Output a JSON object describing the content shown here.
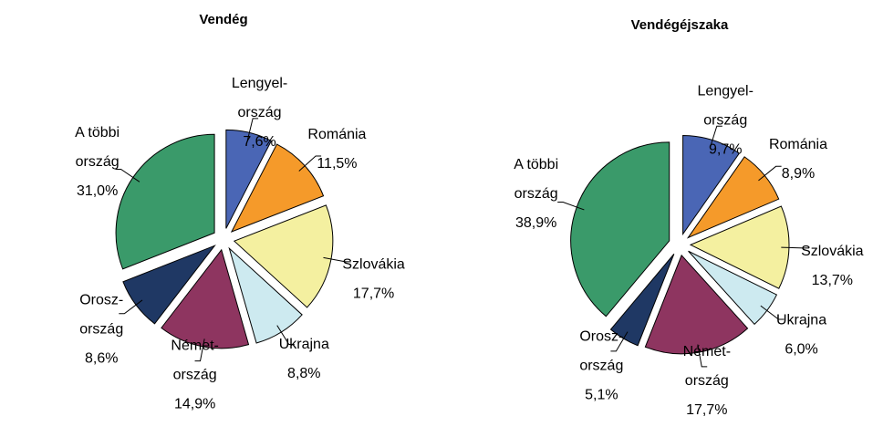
{
  "chart_data": [
    {
      "type": "pie",
      "title": "Vendég",
      "categories": [
        [
          "Lengyel-",
          "ország"
        ],
        [
          "Románia"
        ],
        [
          "Szlovákia"
        ],
        [
          "Ukrajna"
        ],
        [
          "Német-",
          "ország"
        ],
        [
          "Orosz-",
          "ország"
        ],
        [
          "A többi",
          "ország"
        ]
      ],
      "values": [
        7.6,
        11.5,
        17.7,
        8.8,
        14.9,
        8.6,
        31.0
      ],
      "value_labels": [
        "7,6%",
        "11,5%",
        "17,7%",
        "8,8%",
        "14,9%",
        "8,6%",
        "31,0%"
      ],
      "colors": [
        "#4a66b5",
        "#f59a2a",
        "#f4f0a0",
        "#cdeaf0",
        "#8e3560",
        "#1f3864",
        "#3a9a6a"
      ]
    },
    {
      "type": "pie",
      "title": "Vendégéjszaka",
      "categories": [
        [
          "Lengyel-",
          "ország"
        ],
        [
          "Románia"
        ],
        [
          "Szlovákia"
        ],
        [
          "Ukrajna"
        ],
        [
          "Német-",
          "ország"
        ],
        [
          "Orosz-",
          "ország"
        ],
        [
          "A többi",
          "ország"
        ]
      ],
      "values": [
        9.7,
        8.9,
        13.7,
        6.0,
        17.7,
        5.1,
        38.9
      ],
      "value_labels": [
        "9,7%",
        "8,9%",
        "13,7%",
        "6,0%",
        "17,7%",
        "5,1%",
        "38,9%"
      ],
      "colors": [
        "#4a66b5",
        "#f59a2a",
        "#f4f0a0",
        "#cdeaf0",
        "#8e3560",
        "#1f3864",
        "#3a9a6a"
      ]
    }
  ]
}
